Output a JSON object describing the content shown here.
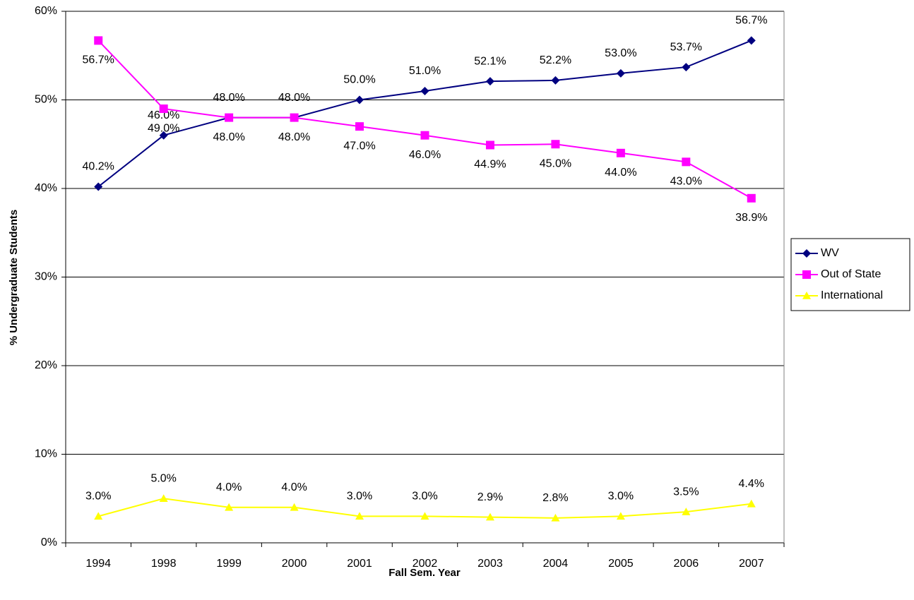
{
  "chart_data": {
    "type": "line",
    "x_label": "Fall Sem. Year",
    "y_label": "% Undergraduate Students",
    "categories": [
      "1994",
      "1998",
      "1999",
      "2000",
      "2001",
      "2002",
      "2003",
      "2004",
      "2005",
      "2006",
      "2007"
    ],
    "series": [
      {
        "name": "WV",
        "color": "#000080",
        "marker": "diamond",
        "values": [
          40.2,
          46.0,
          48.0,
          48.0,
          50.0,
          51.0,
          52.1,
          52.2,
          53.0,
          53.7,
          56.7
        ],
        "value_labels": [
          "40.2%",
          "46.0%",
          "48.0%",
          "48.0%",
          "50.0%",
          "51.0%",
          "52.1%",
          "52.2%",
          "53.0%",
          "53.7%",
          "56.7%"
        ]
      },
      {
        "name": "Out of State",
        "color": "#ff00ff",
        "marker": "square",
        "values": [
          56.7,
          49.0,
          48.0,
          48.0,
          47.0,
          46.0,
          44.9,
          45.0,
          44.0,
          43.0,
          38.9
        ],
        "value_labels": [
          "56.7%",
          "49.0%",
          "48.0%",
          "48.0%",
          "47.0%",
          "46.0%",
          "44.9%",
          "45.0%",
          "44.0%",
          "43.0%",
          "38.9%"
        ]
      },
      {
        "name": "International",
        "color": "#ffff00",
        "marker": "triangle",
        "values": [
          3.0,
          5.0,
          4.0,
          4.0,
          3.0,
          3.0,
          2.9,
          2.8,
          3.0,
          3.5,
          4.4
        ],
        "value_labels": [
          "3.0%",
          "5.0%",
          "4.0%",
          "4.0%",
          "3.0%",
          "3.0%",
          "2.9%",
          "2.8%",
          "3.0%",
          "3.5%",
          "4.4%"
        ]
      }
    ],
    "ylim": [
      0,
      60
    ],
    "yticks": [
      {
        "value": 0,
        "label": "0%"
      },
      {
        "value": 10,
        "label": "10%"
      },
      {
        "value": 20,
        "label": "20%"
      },
      {
        "value": 30,
        "label": "30%"
      },
      {
        "value": 40,
        "label": "40%"
      },
      {
        "value": 50,
        "label": "50%"
      },
      {
        "value": 60,
        "label": "60%"
      }
    ],
    "grid": true,
    "legend": "right"
  }
}
